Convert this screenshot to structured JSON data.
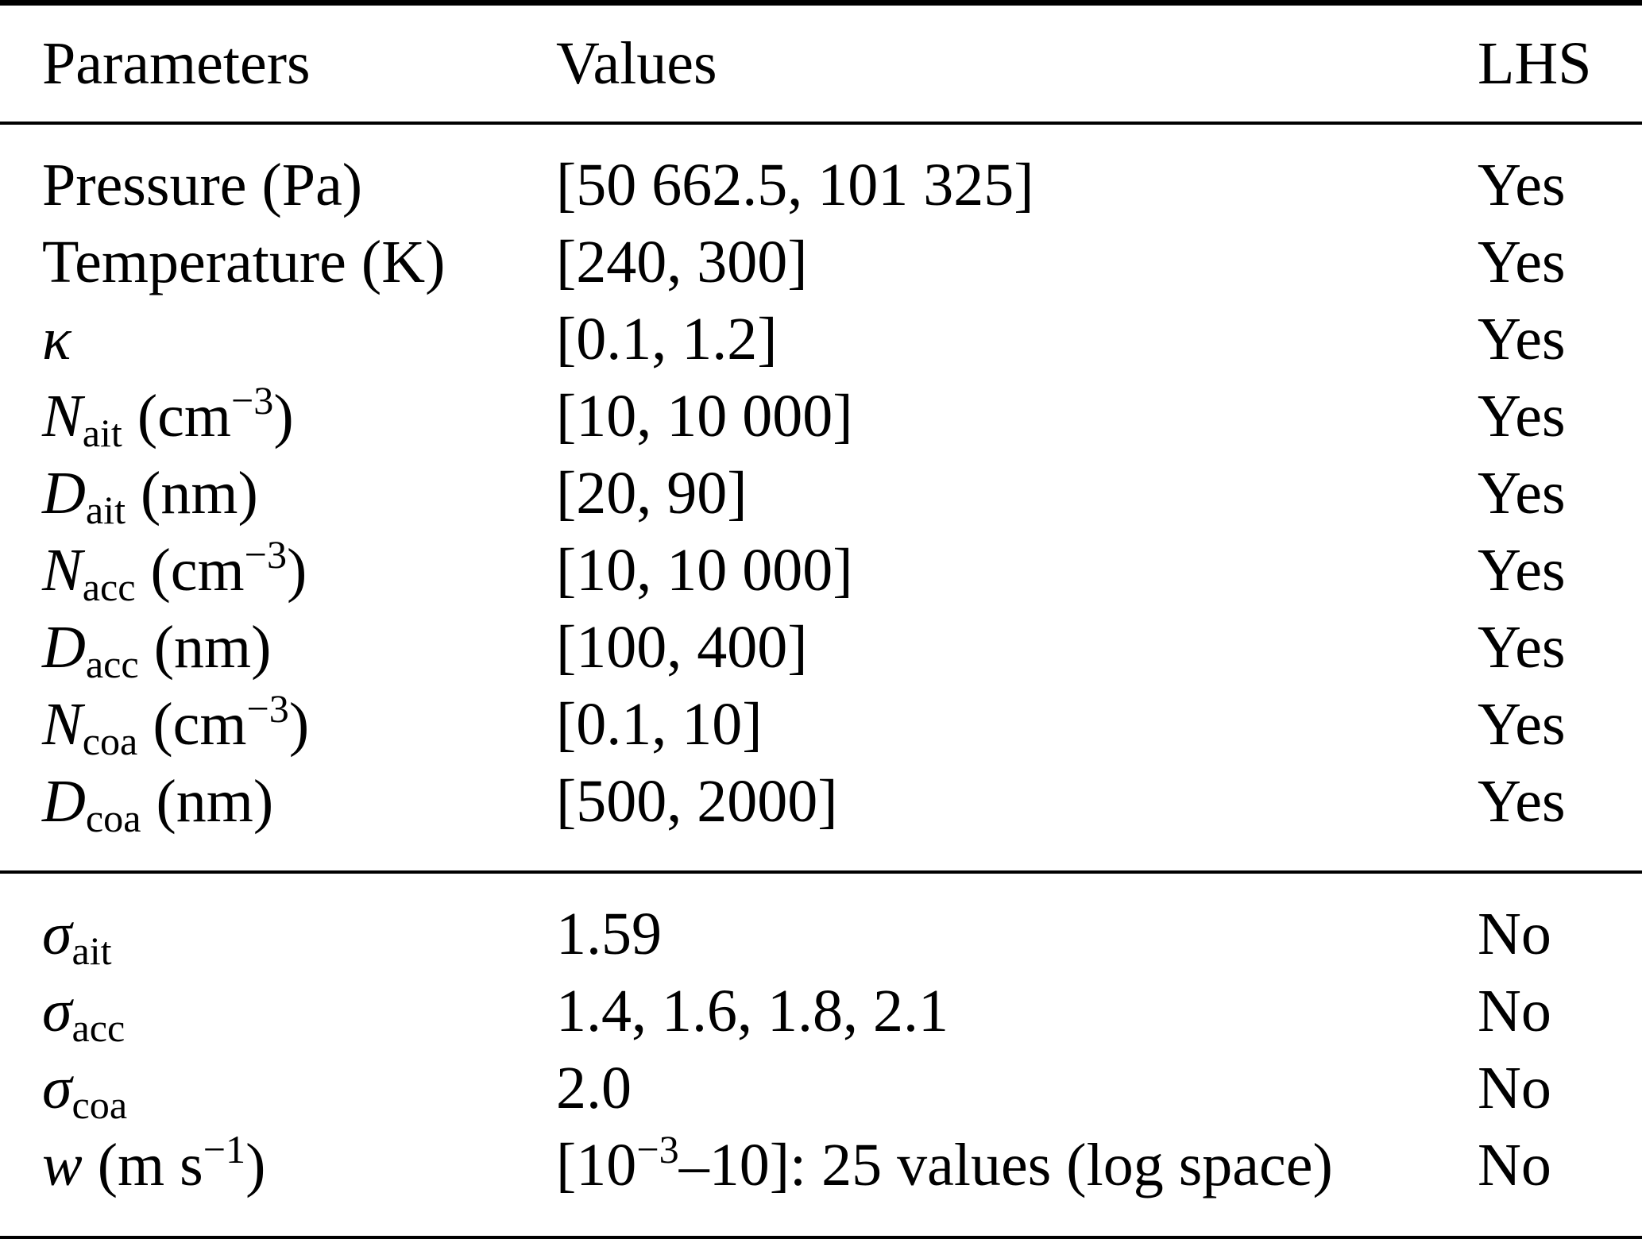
{
  "table": {
    "headers": {
      "parameters": "Parameters",
      "values": "Values",
      "lhs": "LHS"
    },
    "sections": [
      {
        "rows": [
          {
            "param": [
              {
                "t": "Pressure (Pa)"
              }
            ],
            "value": [
              {
                "t": "[50 662.5, 101 325]"
              }
            ],
            "lhs": "Yes"
          },
          {
            "param": [
              {
                "t": "Temperature (K)"
              }
            ],
            "value": [
              {
                "t": "[240, 300]"
              }
            ],
            "lhs": "Yes"
          },
          {
            "param": [
              {
                "t": "κ",
                "s": "i"
              }
            ],
            "value": [
              {
                "t": "[0.1, 1.2]"
              }
            ],
            "lhs": "Yes"
          },
          {
            "param": [
              {
                "t": "N",
                "s": "i"
              },
              {
                "t": "ait",
                "s": "sub"
              },
              {
                "t": " (cm"
              },
              {
                "t": "−3",
                "s": "sup"
              },
              {
                "t": ")"
              }
            ],
            "value": [
              {
                "t": "[10, 10 000]"
              }
            ],
            "lhs": "Yes"
          },
          {
            "param": [
              {
                "t": "D",
                "s": "i"
              },
              {
                "t": "ait",
                "s": "sub"
              },
              {
                "t": " (nm)"
              }
            ],
            "value": [
              {
                "t": "[20, 90]"
              }
            ],
            "lhs": "Yes"
          },
          {
            "param": [
              {
                "t": "N",
                "s": "i"
              },
              {
                "t": "acc",
                "s": "sub"
              },
              {
                "t": " (cm"
              },
              {
                "t": "−3",
                "s": "sup"
              },
              {
                "t": ")"
              }
            ],
            "value": [
              {
                "t": "[10, 10 000]"
              }
            ],
            "lhs": "Yes"
          },
          {
            "param": [
              {
                "t": "D",
                "s": "i"
              },
              {
                "t": "acc",
                "s": "sub"
              },
              {
                "t": " (nm)"
              }
            ],
            "value": [
              {
                "t": "[100, 400]"
              }
            ],
            "lhs": "Yes"
          },
          {
            "param": [
              {
                "t": "N",
                "s": "i"
              },
              {
                "t": "coa",
                "s": "sub"
              },
              {
                "t": " (cm"
              },
              {
                "t": "−3",
                "s": "sup"
              },
              {
                "t": ")"
              }
            ],
            "value": [
              {
                "t": "[0.1, 10]"
              }
            ],
            "lhs": "Yes"
          },
          {
            "param": [
              {
                "t": "D",
                "s": "i"
              },
              {
                "t": "coa",
                "s": "sub"
              },
              {
                "t": " (nm)"
              }
            ],
            "value": [
              {
                "t": "[500, 2000]"
              }
            ],
            "lhs": "Yes"
          }
        ]
      },
      {
        "rows": [
          {
            "param": [
              {
                "t": "σ",
                "s": "i"
              },
              {
                "t": "ait",
                "s": "sub"
              }
            ],
            "value": [
              {
                "t": "1.59"
              }
            ],
            "lhs": "No"
          },
          {
            "param": [
              {
                "t": "σ",
                "s": "i"
              },
              {
                "t": "acc",
                "s": "sub"
              }
            ],
            "value": [
              {
                "t": "1.4, 1.6, 1.8, 2.1"
              }
            ],
            "lhs": "No"
          },
          {
            "param": [
              {
                "t": "σ",
                "s": "i"
              },
              {
                "t": "coa",
                "s": "sub"
              }
            ],
            "value": [
              {
                "t": "2.0"
              }
            ],
            "lhs": "No"
          },
          {
            "param": [
              {
                "t": "w",
                "s": "i"
              },
              {
                "t": " (m s"
              },
              {
                "t": "−1",
                "s": "sup"
              },
              {
                "t": ")"
              }
            ],
            "value": [
              {
                "t": "[10"
              },
              {
                "t": "−3",
                "s": "sup"
              },
              {
                "t": "–10]: 25 values (log space)"
              }
            ],
            "lhs": "No"
          }
        ]
      }
    ]
  }
}
